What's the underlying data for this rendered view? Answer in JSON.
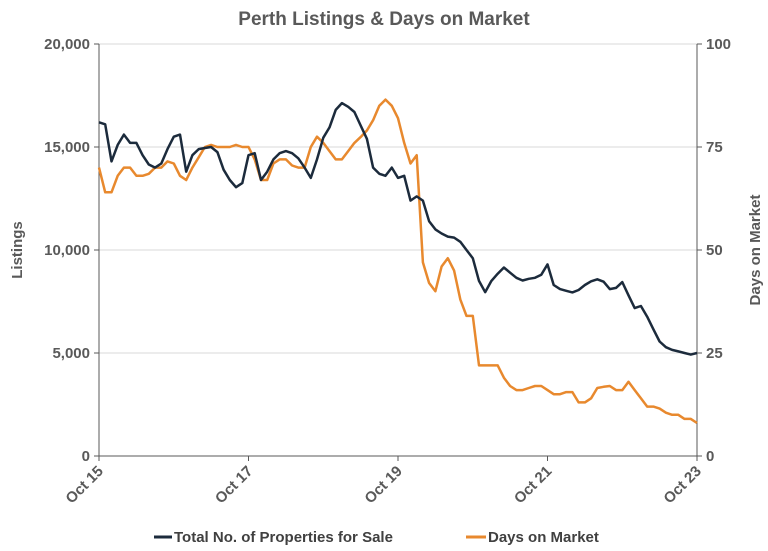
{
  "chart_data": {
    "type": "line",
    "title": "Perth Listings & Days on Market",
    "ylabel": "Listings",
    "y2label": "Days on Market",
    "ylim": [
      0,
      20000
    ],
    "y2lim": [
      0,
      100
    ],
    "yticks": [
      "0",
      "5,000",
      "10,000",
      "15,000",
      "20,000"
    ],
    "y2ticks": [
      "0",
      "25",
      "50",
      "75",
      "100"
    ],
    "xticks": [
      {
        "date": "2015-10",
        "label": "Oct 15"
      },
      {
        "date": "2017-10",
        "label": "Oct 17"
      },
      {
        "date": "2019-10",
        "label": "Oct 19"
      },
      {
        "date": "2021-10",
        "label": "Oct 21"
      },
      {
        "date": "2023-10",
        "label": "Oct 23"
      }
    ],
    "grid": "horizontal",
    "legend_position": "bottom",
    "x": [
      "2015-10",
      "2015-11",
      "2015-12",
      "2016-01",
      "2016-02",
      "2016-03",
      "2016-04",
      "2016-05",
      "2016-06",
      "2016-07",
      "2016-08",
      "2016-09",
      "2016-10",
      "2016-11",
      "2016-12",
      "2017-01",
      "2017-02",
      "2017-03",
      "2017-04",
      "2017-05",
      "2017-06",
      "2017-07",
      "2017-08",
      "2017-09",
      "2017-10",
      "2017-11",
      "2017-12",
      "2018-01",
      "2018-02",
      "2018-03",
      "2018-04",
      "2018-05",
      "2018-06",
      "2018-07",
      "2018-08",
      "2018-09",
      "2018-10",
      "2018-11",
      "2018-12",
      "2019-01",
      "2019-02",
      "2019-03",
      "2019-04",
      "2019-05",
      "2019-06",
      "2019-07",
      "2019-08",
      "2019-09",
      "2019-10",
      "2019-11",
      "2019-12",
      "2020-01",
      "2020-02",
      "2020-03",
      "2020-04",
      "2020-05",
      "2020-06",
      "2020-07",
      "2020-08",
      "2020-09",
      "2020-10",
      "2020-11",
      "2020-12",
      "2021-01",
      "2021-02",
      "2021-03",
      "2021-04",
      "2021-05",
      "2021-06",
      "2021-07",
      "2021-08",
      "2021-09",
      "2021-10",
      "2021-11",
      "2021-12",
      "2022-01",
      "2022-02",
      "2022-03",
      "2022-04",
      "2022-05",
      "2022-06",
      "2022-07",
      "2022-08",
      "2022-09",
      "2022-10",
      "2022-11",
      "2022-12",
      "2023-01",
      "2023-02",
      "2023-03",
      "2023-04",
      "2023-05",
      "2023-06",
      "2023-07",
      "2023-08",
      "2023-09",
      "2023-10"
    ],
    "series": [
      {
        "name": "Total No. of Properties for Sale",
        "axis": "left",
        "color": "#1c2b3c",
        "values": [
          16200,
          16100,
          14300,
          15100,
          15600,
          15200,
          15200,
          14600,
          14150,
          14000,
          14200,
          14900,
          15500,
          15600,
          13800,
          14600,
          14900,
          14950,
          15000,
          14750,
          13900,
          13400,
          13050,
          13250,
          14600,
          14700,
          13400,
          13800,
          14400,
          14700,
          14800,
          14700,
          14450,
          14000,
          13500,
          14400,
          15450,
          15950,
          16800,
          17130,
          16950,
          16700,
          16050,
          15400,
          14000,
          13700,
          13600,
          14000,
          13500,
          13600,
          12400,
          12600,
          12400,
          11400,
          11000,
          10800,
          10650,
          10600,
          10400,
          10000,
          9600,
          8500,
          7950,
          8500,
          8850,
          9150,
          8900,
          8650,
          8520,
          8600,
          8650,
          8800,
          9300,
          8300,
          8100,
          8020,
          7940,
          8060,
          8300,
          8480,
          8580,
          8460,
          8100,
          8160,
          8440,
          7800,
          7180,
          7280,
          6760,
          6150,
          5560,
          5280,
          5150,
          5080,
          5000,
          4920,
          5000
        ]
      },
      {
        "name": "Days on Market",
        "axis": "right",
        "color": "#e8892e",
        "values": [
          70,
          64,
          64,
          68,
          70,
          70,
          68,
          68,
          68.5,
          70,
          70,
          71.5,
          71,
          68,
          67,
          70,
          72.5,
          75,
          75.5,
          75,
          75,
          75,
          75.5,
          75,
          75,
          72,
          67,
          67,
          71,
          72,
          72,
          70.5,
          70,
          70,
          75,
          77.5,
          76,
          74,
          72,
          72,
          74,
          76,
          77.4,
          79,
          81.5,
          85,
          86.5,
          85,
          82,
          76,
          71,
          73,
          47,
          42,
          40,
          46,
          48,
          45,
          38,
          34,
          34,
          22,
          22,
          22,
          22,
          19,
          17,
          16,
          16,
          16.5,
          17,
          17,
          16,
          15,
          15,
          15.5,
          15.5,
          13,
          13,
          14,
          16.5,
          16.8,
          17,
          16,
          16,
          18,
          16,
          14,
          12,
          12,
          11.5,
          10.5,
          10,
          10,
          9,
          9,
          8
        ]
      }
    ]
  }
}
